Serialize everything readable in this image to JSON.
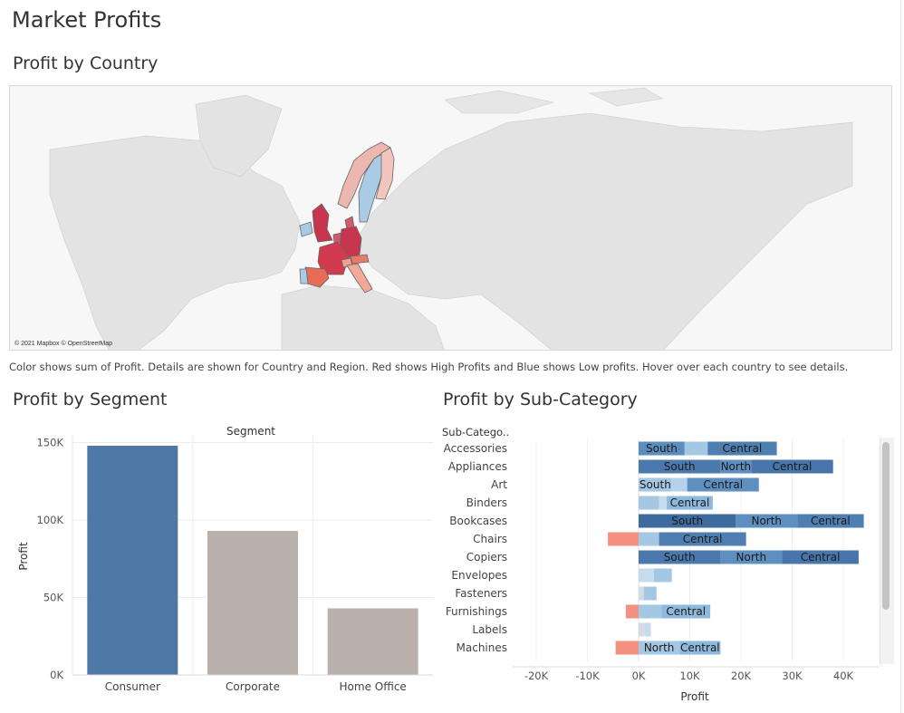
{
  "page": {
    "title": "Market Profits"
  },
  "map": {
    "title": "Profit by Country",
    "credit": "© 2021 Mapbox © OpenStreetMap",
    "caption": "Color shows sum of Profit.  Details are shown for Country and Region. Red shows High  Profits and Blue shows Low profits. Hover over each country to see details."
  },
  "colors": {
    "blue": "#4e79a7",
    "grey": "#bab0ac",
    "neg": "#f4907f",
    "low": "#a9cbe5",
    "high": "#c7354f"
  },
  "segment_chart": {
    "title": "Profit by Segment",
    "header": "Segment",
    "ylabel": "Profit",
    "yticks": [
      "0K",
      "50K",
      "100K",
      "150K"
    ]
  },
  "subcat_chart": {
    "title": "Profit by Sub-Category",
    "header": "Sub-Catego..",
    "xlabel": "Profit",
    "xticks": [
      "-20K",
      "-10K",
      "0K",
      "10K",
      "20K",
      "30K",
      "40K"
    ]
  },
  "chart_data": [
    {
      "type": "bar",
      "title": "Profit by Segment",
      "xlabel": "Segment",
      "ylabel": "Profit",
      "categories": [
        "Consumer",
        "Corporate",
        "Home Office"
      ],
      "values": [
        148000,
        93000,
        43000
      ],
      "colors": [
        "#4e79a7",
        "#bab0ac",
        "#bab0ac"
      ],
      "ylim": [
        0,
        155000
      ],
      "grid": true
    },
    {
      "type": "bar",
      "orientation": "horizontal",
      "stacked": true,
      "title": "Profit by Sub-Category",
      "xlabel": "Profit",
      "ylabel": "Sub-Catego..",
      "xlim": [
        -25000,
        47000
      ],
      "categories": [
        "Accessories",
        "Appliances",
        "Art",
        "Binders",
        "Bookcases",
        "Chairs",
        "Copiers",
        "Envelopes",
        "Fasteners",
        "Furnishings",
        "Labels",
        "Machines"
      ],
      "rows": [
        {
          "category": "Accessories",
          "segments": [
            {
              "label": "South",
              "value": 9000,
              "color": "#5b8dbd"
            },
            {
              "label": "",
              "value": 4500,
              "color": "#a4c8e4"
            },
            {
              "label": "Central",
              "value": 13500,
              "color": "#4e7fb0"
            }
          ]
        },
        {
          "category": "Appliances",
          "segments": [
            {
              "label": "South",
              "value": 16000,
              "color": "#4b79ad"
            },
            {
              "label": "North",
              "value": 6000,
              "color": "#5d8fc0"
            },
            {
              "label": "Central",
              "value": 16000,
              "color": "#4876aa"
            }
          ]
        },
        {
          "category": "Art",
          "segments": [
            {
              "label": "South",
              "value": 6500,
              "color": "#a4c8e4"
            },
            {
              "label": "",
              "value": 3000,
              "color": "#b4d3ea"
            },
            {
              "label": "Central",
              "value": 14000,
              "color": "#5d8fc0"
            }
          ]
        },
        {
          "category": "Binders",
          "segments": [
            {
              "label": "",
              "value": 4000,
              "color": "#a4c8e4"
            },
            {
              "label": "",
              "value": 1500,
              "color": "#c6dbec"
            },
            {
              "label": "Central",
              "value": 9000,
              "color": "#8fb9dc"
            }
          ]
        },
        {
          "category": "Bookcases",
          "segments": [
            {
              "label": "South",
              "value": 19000,
              "color": "#3d6b9d"
            },
            {
              "label": "North",
              "value": 12000,
              "color": "#5d8fc0"
            },
            {
              "label": "Central",
              "value": 13000,
              "color": "#4e7fb0"
            }
          ]
        },
        {
          "category": "Chairs",
          "segments": [
            {
              "label": "",
              "value": -6000,
              "color": "#f4907f"
            },
            {
              "label": "",
              "value": 4000,
              "color": "#a4c8e4"
            },
            {
              "label": "Central",
              "value": 17000,
              "color": "#4e7fb0"
            }
          ]
        },
        {
          "category": "Copiers",
          "segments": [
            {
              "label": "South",
              "value": 16000,
              "color": "#4b79ad"
            },
            {
              "label": "North",
              "value": 12000,
              "color": "#5d8fc0"
            },
            {
              "label": "Central",
              "value": 15000,
              "color": "#4876aa"
            }
          ]
        },
        {
          "category": "Envelopes",
          "segments": [
            {
              "label": "",
              "value": 3000,
              "color": "#c6dbec"
            },
            {
              "label": "",
              "value": 3500,
              "color": "#a4c8e4"
            }
          ]
        },
        {
          "category": "Fasteners",
          "segments": [
            {
              "label": "",
              "value": 1000,
              "color": "#d3dce4"
            },
            {
              "label": "",
              "value": 2500,
              "color": "#a4c8e4"
            }
          ]
        },
        {
          "category": "Furnishings",
          "segments": [
            {
              "label": "",
              "value": -2500,
              "color": "#f4907f"
            },
            {
              "label": "",
              "value": 4500,
              "color": "#a4c8e4"
            },
            {
              "label": "Central",
              "value": 9500,
              "color": "#8fb9dc"
            }
          ]
        },
        {
          "category": "Labels",
          "segments": [
            {
              "label": "",
              "value": 1200,
              "color": "#d3dce4"
            },
            {
              "label": "",
              "value": 1200,
              "color": "#c6dbec"
            }
          ]
        },
        {
          "category": "Machines",
          "segments": [
            {
              "label": "",
              "value": -4500,
              "color": "#f4907f"
            },
            {
              "label": "North",
              "value": 8000,
              "color": "#a4c8e4"
            },
            {
              "label": "Central",
              "value": 8000,
              "color": "#8fb9dc"
            }
          ]
        }
      ]
    }
  ]
}
